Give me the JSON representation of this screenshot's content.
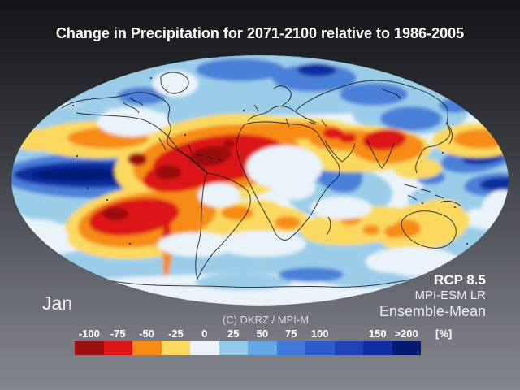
{
  "title": "Change in Precipitation for 2071-2100 relative to 1986-2005",
  "month_label": "Jan",
  "credit_line": "(C) DKRZ / MPI-M",
  "scenario_panel": {
    "scenario": "RCP 8.5",
    "model": "MPI-ESM LR",
    "ensemble": "Ensemble-Mean"
  },
  "colorbar": {
    "unit_label": "[%]",
    "ticks": [
      {
        "label": "-100",
        "pos": 4.2
      },
      {
        "label": "-75",
        "pos": 12.5
      },
      {
        "label": "-50",
        "pos": 20.8
      },
      {
        "label": "-25",
        "pos": 29.2
      },
      {
        "label": "0",
        "pos": 37.5
      },
      {
        "label": "25",
        "pos": 45.8
      },
      {
        "label": "50",
        "pos": 54.2
      },
      {
        "label": "75",
        "pos": 62.5
      },
      {
        "label": "100",
        "pos": 70.8
      },
      {
        "label": "150",
        "pos": 87.5
      },
      {
        "label": ">200",
        "pos": 95.8
      }
    ],
    "segments": [
      "#9b1010",
      "#dc1414",
      "#f68c14",
      "#fbd961",
      "#eaf3fa",
      "#93cae9",
      "#64a8e6",
      "#4079da",
      "#2c5ccd",
      "#1d42ba",
      "#112da3",
      "#041a70"
    ]
  },
  "palette": {
    "pale": "#eaf3fa",
    "lightblue": "#9bcde9",
    "medblue": "#4a80d8",
    "navy": "#0d2da0",
    "darknavy": "#041c78",
    "yellow": "#fbd95e",
    "orange": "#f68c14",
    "red": "#dc1812",
    "darkred": "#9b1010"
  }
}
